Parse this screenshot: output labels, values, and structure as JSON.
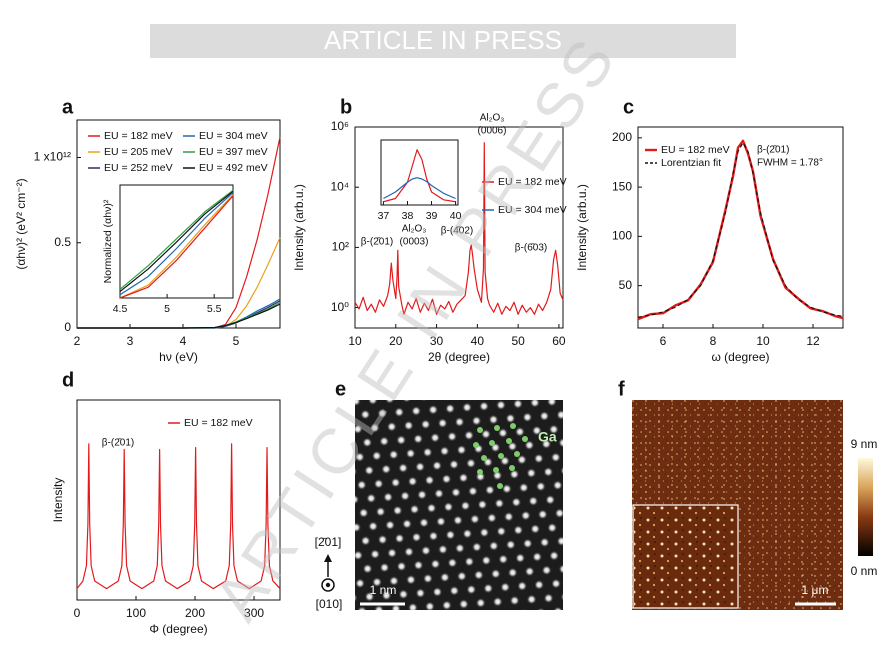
{
  "banner": "ARTICLE IN PRESS",
  "watermark": "ARTICLE IN PRESS",
  "chart_data": [
    {
      "panel": "a",
      "type": "line",
      "xlabel": "hν (eV)",
      "ylabel": "(αhν)² (eV² cm⁻²)",
      "x": [
        2,
        3,
        4,
        4.6,
        4.8,
        5.0,
        5.2,
        5.4,
        5.6,
        5.83
      ],
      "xlim": [
        2,
        5.83
      ],
      "xticks": [
        2,
        3,
        4,
        5
      ],
      "ylim": [
        0,
        1.22
      ],
      "yticks": [
        0,
        0.5,
        {
          "value": 1,
          "label": "1 x10¹²"
        }
      ],
      "series": [
        {
          "name": "EU = 182 meV",
          "color": "#e31a1c",
          "values": [
            0,
            0,
            0,
            0.002,
            0.02,
            0.12,
            0.3,
            0.52,
            0.78,
            1.12
          ]
        },
        {
          "name": "EU = 205 meV",
          "color": "#e8a21a",
          "values": [
            0,
            0,
            0,
            0,
            0.01,
            0.05,
            0.13,
            0.24,
            0.37,
            0.53
          ]
        },
        {
          "name": "EU = 252 meV",
          "color": "#2b2f6b",
          "values": [
            0,
            0,
            0,
            0,
            0.01,
            0.03,
            0.06,
            0.09,
            0.12,
            0.16
          ]
        },
        {
          "name": "EU = 304 meV",
          "color": "#2266b3",
          "values": [
            0,
            0,
            0,
            0,
            0.01,
            0.035,
            0.065,
            0.1,
            0.13,
            0.17
          ]
        },
        {
          "name": "EU = 397 meV",
          "color": "#2ea043",
          "values": [
            0,
            0,
            0,
            0.003,
            0.015,
            0.035,
            0.06,
            0.085,
            0.11,
            0.15
          ]
        },
        {
          "name": "EU = 492 meV",
          "color": "#111111",
          "values": [
            0,
            0,
            0,
            0.003,
            0.014,
            0.032,
            0.055,
            0.08,
            0.105,
            0.14
          ]
        }
      ],
      "inset": {
        "type": "line",
        "ylabel": "Normalized (αhν)²",
        "x": [
          4.5,
          4.8,
          5.1,
          5.4,
          5.7
        ],
        "xlim": [
          4.5,
          5.7
        ],
        "xticks": [
          4.5,
          5,
          5.5
        ],
        "ylim": [
          0,
          1.05
        ],
        "series": [
          {
            "color": "#2ea043",
            "values": [
              0.08,
              0.3,
              0.55,
              0.8,
              1
            ]
          },
          {
            "color": "#111111",
            "values": [
              0.06,
              0.27,
              0.52,
              0.78,
              0.99
            ]
          },
          {
            "color": "#2266b3",
            "values": [
              0.03,
              0.2,
              0.46,
              0.74,
              0.98
            ]
          },
          {
            "color": "#e8a21a",
            "values": [
              0,
              0.12,
              0.38,
              0.68,
              0.96
            ]
          },
          {
            "color": "#e31a1c",
            "values": [
              0,
              0.1,
              0.35,
              0.65,
              0.95
            ]
          }
        ]
      }
    },
    {
      "panel": "b",
      "type": "line",
      "xlabel": "2θ (degree)",
      "ylabel": "Intensity (arb.u.)",
      "ylog": true,
      "x": [
        10,
        11,
        12,
        13,
        14,
        15,
        16,
        17,
        18,
        18.5,
        18.9,
        19.3,
        20,
        20.3,
        20.5,
        20.7,
        21.5,
        22,
        23,
        24,
        25,
        26,
        27,
        28,
        29,
        30,
        31,
        32,
        33,
        34,
        35,
        36,
        37,
        37.8,
        38.2,
        38.5,
        38.8,
        39.2,
        40,
        41,
        41.5,
        41.7,
        41.9,
        42.5,
        43,
        44,
        45,
        46,
        47,
        48,
        49,
        50,
        51,
        52,
        53,
        54,
        55,
        56,
        57,
        58,
        58.7,
        59.2,
        59.7,
        60.3,
        61
      ],
      "xlim": [
        10,
        61
      ],
      "xticks": [
        10,
        20,
        30,
        40,
        50,
        60
      ],
      "ylim": [
        0.21,
        1000000
      ],
      "yticks": [
        {
          "value": 1,
          "label": "10⁰"
        },
        {
          "value": 100,
          "label": "10²"
        },
        {
          "value": 10000,
          "label": "10⁴"
        },
        {
          "value": 1000000,
          "label": "10⁶"
        }
      ],
      "series": [
        {
          "color": "#e31a1c",
          "values": [
            1.5,
            0.9,
            2.2,
            0.8,
            1.3,
            0.7,
            1.8,
            1.1,
            2.5,
            6,
            30,
            8,
            2,
            10,
            80,
            5,
            1.2,
            0.6,
            1.5,
            0.9,
            2,
            0.7,
            1.4,
            0.8,
            1.9,
            0.6,
            1.2,
            0.9,
            1.6,
            0.7,
            1.3,
            1.8,
            2.5,
            15,
            80,
            120,
            60,
            20,
            4,
            1.5,
            20,
            300000,
            15,
            2,
            1.2,
            0.7,
            1.4,
            0.6,
            1.1,
            0.8,
            1.5,
            0.6,
            1.2,
            0.7,
            1,
            0.6,
            1.3,
            0.8,
            1.5,
            4,
            40,
            80,
            25,
            3,
            1.8
          ]
        }
      ],
      "annotations": [
        "β-(2̄01)",
        "Al₂O₃",
        "(0003)",
        "β-(4̄02)",
        "Al₂O₃",
        "(0006)",
        "β-(6̄03)"
      ],
      "inset": {
        "type": "line",
        "x": [
          37,
          37.5,
          38,
          38.2,
          38.4,
          38.6,
          38.8,
          39,
          39.5,
          40
        ],
        "xlim": [
          36.9,
          40.1
        ],
        "xticks": [
          37,
          38,
          39,
          40
        ],
        "ylim": [
          0,
          1
        ],
        "series": [
          {
            "name": "EU = 182 meV",
            "color": "#e31a1c",
            "values": [
              0.05,
              0.1,
              0.35,
              0.6,
              0.85,
              0.7,
              0.4,
              0.2,
              0.08,
              0.05
            ]
          },
          {
            "name": "EU = 304 meV",
            "color": "#2266b3",
            "values": [
              0.1,
              0.2,
              0.35,
              0.4,
              0.42,
              0.4,
              0.36,
              0.3,
              0.18,
              0.1
            ]
          }
        ]
      }
    },
    {
      "panel": "c",
      "type": "line",
      "xlabel": "ω (degree)",
      "ylabel": "Intensity (arb.u.)",
      "x": [
        5,
        5.5,
        6,
        6.5,
        7,
        7.5,
        8,
        8.5,
        8.8,
        9,
        9.2,
        9.4,
        9.6,
        9.9,
        10.4,
        10.9,
        11.4,
        11.9,
        12.4,
        12.9,
        13.2
      ],
      "xlim": [
        5,
        13.2
      ],
      "xticks": [
        6,
        8,
        10,
        12
      ],
      "ylim": [
        7,
        211
      ],
      "yticks": [
        50,
        100,
        150,
        200
      ],
      "series": [
        {
          "name": "EU = 182 meV",
          "color": "#e31a1c",
          "width": 2.4,
          "values": [
            16,
            21,
            22,
            30,
            35,
            51,
            74,
            127,
            161,
            190,
            197,
            184,
            166,
            121,
            77,
            48,
            37,
            27,
            24,
            19,
            17
          ]
        },
        {
          "name": "Lorentzian fit",
          "color": "#111111",
          "style": "dashed",
          "values": [
            17.9,
            20.1,
            23.3,
            28.1,
            36,
            49.8,
            75.6,
            124.3,
            163.9,
            186.2,
            195,
            186.2,
            163.9,
            124.3,
            75.6,
            49.8,
            36,
            28.1,
            23.3,
            20.1,
            18.7
          ]
        }
      ],
      "annotations": [
        "β-(2̄01)",
        "FWHM = 1.78°"
      ]
    },
    {
      "panel": "d",
      "type": "line",
      "xlabel": "Φ (degree)",
      "ylabel": "Intensity",
      "x": [
        0,
        10,
        16,
        18.5,
        20,
        21.5,
        24,
        30,
        50,
        70,
        76,
        78.5,
        80,
        81.5,
        84,
        90,
        110,
        130,
        136,
        138.5,
        140,
        141.5,
        144,
        150,
        170,
        191,
        197,
        199.5,
        201,
        202.5,
        205,
        211,
        231,
        252,
        258,
        260.5,
        262,
        263.5,
        266,
        272,
        292,
        312,
        318,
        320.5,
        322,
        323.5,
        326,
        332,
        344
      ],
      "xlim": [
        0,
        344
      ],
      "xticks": [
        0,
        100,
        200,
        300
      ],
      "ylim": [
        0,
        1.05
      ],
      "series": [
        {
          "name": "EU = 182 meV",
          "color": "#e31a1c",
          "values": [
            0.06,
            0.1,
            0.18,
            0.4,
            0.82,
            0.4,
            0.18,
            0.1,
            0.06,
            0.1,
            0.18,
            0.4,
            0.79,
            0.4,
            0.18,
            0.1,
            0.06,
            0.1,
            0.18,
            0.4,
            0.79,
            0.4,
            0.18,
            0.1,
            0.06,
            0.1,
            0.18,
            0.4,
            0.8,
            0.4,
            0.18,
            0.1,
            0.06,
            0.1,
            0.18,
            0.4,
            0.82,
            0.4,
            0.18,
            0.1,
            0.06,
            0.1,
            0.18,
            0.4,
            0.8,
            0.4,
            0.18,
            0.1,
            0.06
          ]
        }
      ],
      "annotations": [
        "β-(2̄01)"
      ]
    }
  ],
  "panel_e": {
    "label": "e",
    "element": "Ga",
    "scale_bar": "1 nm",
    "direction_up": "[2̄01]",
    "direction_out": "[010]"
  },
  "panel_f": {
    "label": "f",
    "colorbar_max": "9 nm",
    "colorbar_min": "0 nm",
    "scale_bar": "1 μm"
  }
}
